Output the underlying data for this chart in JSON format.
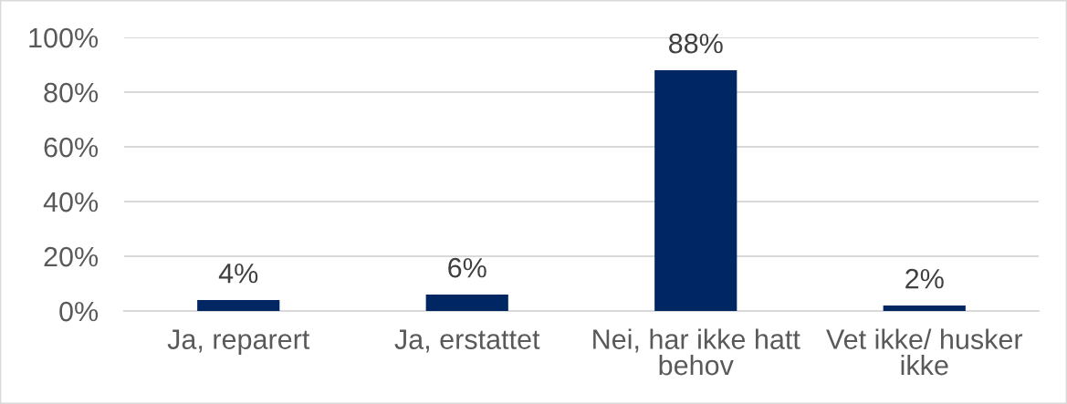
{
  "chart_data": {
    "type": "bar",
    "categories": [
      "Ja, reparert",
      "Ja, erstattet",
      "Nei, har ikke hatt behov",
      "Vet ikke/ husker ikke"
    ],
    "values": [
      4,
      6,
      88,
      2
    ],
    "color": "#002664",
    "value_labels": [
      "4%",
      "6%",
      "88%",
      "2%"
    ],
    "ylim": [
      0,
      100
    ],
    "yticks": [
      {
        "value": 0,
        "label": "0%"
      },
      {
        "value": 20,
        "label": "20%"
      },
      {
        "value": 40,
        "label": "40%"
      },
      {
        "value": 60,
        "label": "60%"
      },
      {
        "value": 80,
        "label": "80%"
      },
      {
        "value": 100,
        "label": "100%"
      }
    ],
    "grid": "y",
    "legend": false
  }
}
